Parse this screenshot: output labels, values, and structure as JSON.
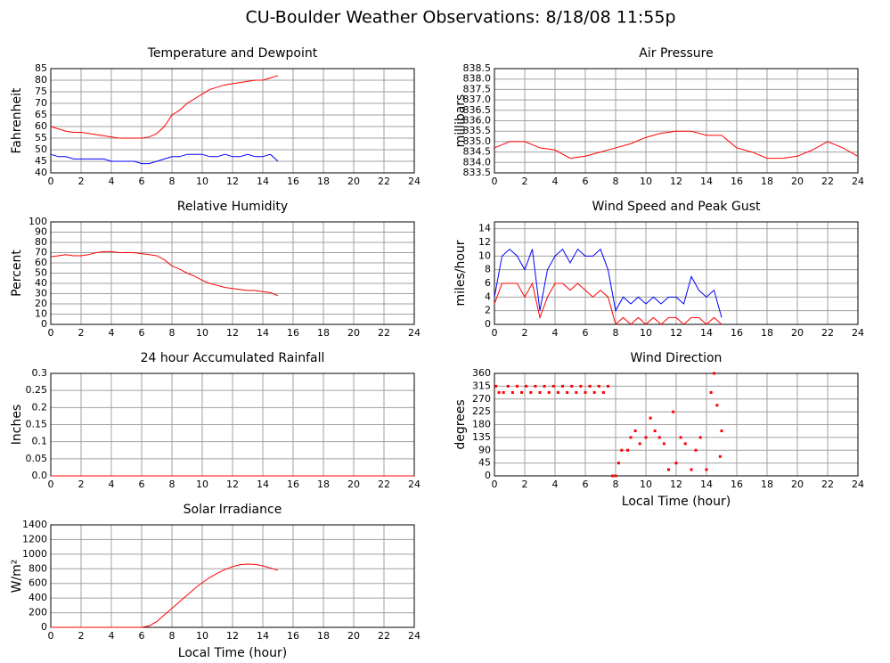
{
  "title": "CU-Boulder Weather Observations: 8/18/08 11:55p",
  "chart_data": [
    {
      "type": "line",
      "title": "Temperature and Dewpoint",
      "ylabel": "Fahrenheit",
      "x": [
        0,
        0.5,
        1,
        1.5,
        2,
        2.5,
        3,
        3.5,
        4,
        4.5,
        5,
        5.5,
        6,
        6.5,
        7,
        7.5,
        8,
        8.5,
        9,
        9.5,
        10,
        10.5,
        11,
        11.5,
        12,
        12.5,
        13,
        13.5,
        14,
        14.5,
        15
      ],
      "series": [
        {
          "color": "#ff0000",
          "values": [
            60,
            59,
            58,
            57.5,
            57.5,
            57,
            56.5,
            56,
            55.5,
            55,
            55,
            55,
            55,
            55.5,
            57,
            60,
            65,
            67,
            70,
            72,
            74,
            76,
            77,
            78,
            78.5,
            79,
            79.5,
            80,
            80,
            81,
            82
          ]
        },
        {
          "color": "#0000ff",
          "values": [
            48,
            47,
            47,
            46,
            46,
            46,
            46,
            46,
            45,
            45,
            45,
            45,
            44,
            44,
            45,
            46,
            47,
            47,
            48,
            48,
            48,
            47,
            47,
            48,
            47,
            47,
            48,
            47,
            47,
            48,
            45
          ]
        }
      ],
      "xlim": [
        0,
        24
      ],
      "xticks": [
        0,
        2,
        4,
        6,
        8,
        10,
        12,
        14,
        16,
        18,
        20,
        22,
        24
      ],
      "ylim": [
        40,
        85
      ],
      "yticks": [
        40,
        45,
        50,
        55,
        60,
        65,
        70,
        75,
        80,
        85
      ],
      "grid": true
    },
    {
      "type": "line",
      "title": "Air Pressure",
      "ylabel": "millibars",
      "x": [
        0,
        1,
        2,
        3,
        4,
        5,
        6,
        7,
        8,
        9,
        10,
        11,
        12,
        13,
        14,
        15,
        16,
        17,
        18,
        19,
        20,
        21,
        22,
        23,
        24
      ],
      "series": [
        {
          "color": "#ff0000",
          "values": [
            834.7,
            835.0,
            835.0,
            834.7,
            834.6,
            834.2,
            834.3,
            834.5,
            834.7,
            834.9,
            835.2,
            835.4,
            835.5,
            835.5,
            835.3,
            835.3,
            834.7,
            834.5,
            834.2,
            834.2,
            834.3,
            834.6,
            835.0,
            834.7,
            834.3
          ]
        }
      ],
      "xlim": [
        0,
        24
      ],
      "xticks": [
        0,
        2,
        4,
        6,
        8,
        10,
        12,
        14,
        16,
        18,
        20,
        22,
        24
      ],
      "ylim": [
        833.5,
        838.5
      ],
      "yticks": [
        833.5,
        {
          "value": 834,
          "label": "834.0"
        },
        834.5,
        {
          "value": 835,
          "label": "835.0"
        },
        835.5,
        {
          "value": 836,
          "label": "836.0"
        },
        836.5,
        {
          "value": 837,
          "label": "837.0"
        },
        837.5,
        {
          "value": 838,
          "label": "838.0"
        },
        838.5
      ],
      "grid": true
    },
    {
      "type": "line",
      "title": "Relative Humidity",
      "ylabel": "Percent",
      "x": [
        0,
        0.5,
        1,
        1.5,
        2,
        2.5,
        3,
        3.5,
        4,
        4.5,
        5,
        5.5,
        6,
        6.5,
        7,
        7.5,
        8,
        8.5,
        9,
        9.5,
        10,
        10.5,
        11,
        11.5,
        12,
        12.5,
        13,
        13.5,
        14,
        14.5,
        15
      ],
      "series": [
        {
          "color": "#ff0000",
          "values": [
            66,
            67,
            68,
            67,
            67,
            68,
            70,
            71,
            71,
            70,
            70,
            70,
            69,
            68,
            67,
            63,
            57,
            54,
            50,
            47,
            43,
            40,
            38,
            36,
            35,
            34,
            33,
            33,
            32,
            31,
            28
          ]
        }
      ],
      "xlim": [
        0,
        24
      ],
      "xticks": [
        0,
        2,
        4,
        6,
        8,
        10,
        12,
        14,
        16,
        18,
        20,
        22,
        24
      ],
      "ylim": [
        0,
        100
      ],
      "yticks": [
        0,
        10,
        20,
        30,
        40,
        50,
        60,
        70,
        80,
        90,
        100
      ],
      "grid": true
    },
    {
      "type": "line",
      "title": "Wind Speed and Peak Gust",
      "ylabel": "miles/hour",
      "x": [
        0,
        0.5,
        1,
        1.5,
        2,
        2.5,
        3,
        3.5,
        4,
        4.5,
        5,
        5.5,
        6,
        6.5,
        7,
        7.5,
        8,
        8.5,
        9,
        9.5,
        10,
        10.5,
        11,
        11.5,
        12,
        12.5,
        13,
        13.5,
        14,
        14.5,
        15
      ],
      "series": [
        {
          "color": "#0000ff",
          "values": [
            4,
            10,
            11,
            10,
            8,
            11,
            2,
            8,
            10,
            11,
            9,
            11,
            10,
            10,
            11,
            8,
            2,
            4,
            3,
            4,
            3,
            4,
            3,
            4,
            4,
            3,
            7,
            5,
            4,
            5,
            1
          ]
        },
        {
          "color": "#ff0000",
          "values": [
            3,
            6,
            6,
            6,
            4,
            6,
            1,
            4,
            6,
            6,
            5,
            6,
            5,
            4,
            5,
            4,
            0,
            1,
            0,
            1,
            0,
            1,
            0,
            1,
            1,
            0,
            1,
            1,
            0,
            1,
            0
          ]
        }
      ],
      "xlim": [
        0,
        24
      ],
      "xticks": [
        0,
        2,
        4,
        6,
        8,
        10,
        12,
        14,
        16,
        18,
        20,
        22,
        24
      ],
      "ylim": [
        0,
        15
      ],
      "yticks": [
        0,
        2,
        4,
        6,
        8,
        10,
        12,
        14
      ],
      "grid": true
    },
    {
      "type": "line",
      "title": "24 hour Accumulated Rainfall",
      "ylabel": "Inches",
      "x": [
        0,
        24
      ],
      "series": [
        {
          "color": "#ff0000",
          "values": [
            0,
            0
          ]
        }
      ],
      "xlim": [
        0,
        24
      ],
      "xticks": [
        0,
        2,
        4,
        6,
        8,
        10,
        12,
        14,
        16,
        18,
        20,
        22,
        24
      ],
      "ylim": [
        0,
        0.3
      ],
      "yticks": [
        {
          "value": 0,
          "label": "0.0"
        },
        0.05,
        0.1,
        0.15,
        0.2,
        0.25,
        0.3
      ],
      "grid": true
    },
    {
      "type": "scatter",
      "title": "Wind Direction",
      "ylabel": "degrees",
      "xlabel": "Local Time (hour)",
      "x": [
        0.1,
        0.3,
        0.6,
        0.9,
        1.2,
        1.5,
        1.8,
        2.1,
        2.4,
        2.7,
        3.0,
        3.3,
        3.6,
        3.9,
        4.2,
        4.5,
        4.8,
        5.1,
        5.4,
        5.7,
        6.0,
        6.3,
        6.6,
        6.9,
        7.2,
        7.5,
        7.8,
        8.0,
        8.2,
        8.4,
        8.8,
        9.0,
        9.3,
        9.6,
        10.0,
        10.3,
        10.6,
        10.9,
        11.2,
        11.5,
        11.8,
        12.0,
        12.3,
        12.6,
        13.0,
        13.3,
        13.6,
        14.0,
        14.3,
        14.5,
        14.7,
        14.9,
        15.0
      ],
      "series": [
        {
          "color": "#ff0000",
          "values": [
            315,
            293,
            293,
            315,
            293,
            315,
            293,
            315,
            293,
            315,
            293,
            315,
            293,
            315,
            293,
            315,
            293,
            315,
            293,
            315,
            293,
            315,
            293,
            315,
            293,
            315,
            0,
            0,
            45,
            90,
            90,
            135,
            158,
            113,
            135,
            203,
            158,
            135,
            113,
            22,
            225,
            45,
            135,
            113,
            22,
            90,
            135,
            22,
            293,
            360,
            248,
            68,
            158
          ]
        }
      ],
      "xlim": [
        0,
        24
      ],
      "xticks": [
        0,
        2,
        4,
        6,
        8,
        10,
        12,
        14,
        16,
        18,
        20,
        22,
        24
      ],
      "ylim": [
        0,
        360
      ],
      "yticks": [
        0,
        45,
        90,
        135,
        180,
        225,
        270,
        315,
        360
      ],
      "grid": true
    },
    {
      "type": "line",
      "title": "Solar Irradiance",
      "ylabel": "W/m²",
      "xlabel": "Local Time (hour)",
      "x": [
        0,
        0.5,
        1,
        1.5,
        2,
        2.5,
        3,
        3.5,
        4,
        4.5,
        5,
        5.5,
        6,
        6.5,
        7,
        7.5,
        8,
        8.5,
        9,
        9.5,
        10,
        10.5,
        11,
        11.5,
        12,
        12.5,
        13,
        13.5,
        14,
        14.5,
        15
      ],
      "series": [
        {
          "color": "#ff0000",
          "values": [
            0,
            0,
            0,
            0,
            0,
            0,
            0,
            0,
            0,
            0,
            0,
            0,
            0,
            20,
            80,
            170,
            260,
            350,
            440,
            530,
            610,
            680,
            740,
            790,
            830,
            855,
            865,
            860,
            840,
            810,
            780
          ]
        }
      ],
      "xlim": [
        0,
        24
      ],
      "xticks": [
        0,
        2,
        4,
        6,
        8,
        10,
        12,
        14,
        16,
        18,
        20,
        22,
        24
      ],
      "ylim": [
        0,
        1400
      ],
      "yticks": [
        0,
        200,
        400,
        600,
        800,
        1000,
        1200,
        1400
      ],
      "grid": true
    }
  ]
}
